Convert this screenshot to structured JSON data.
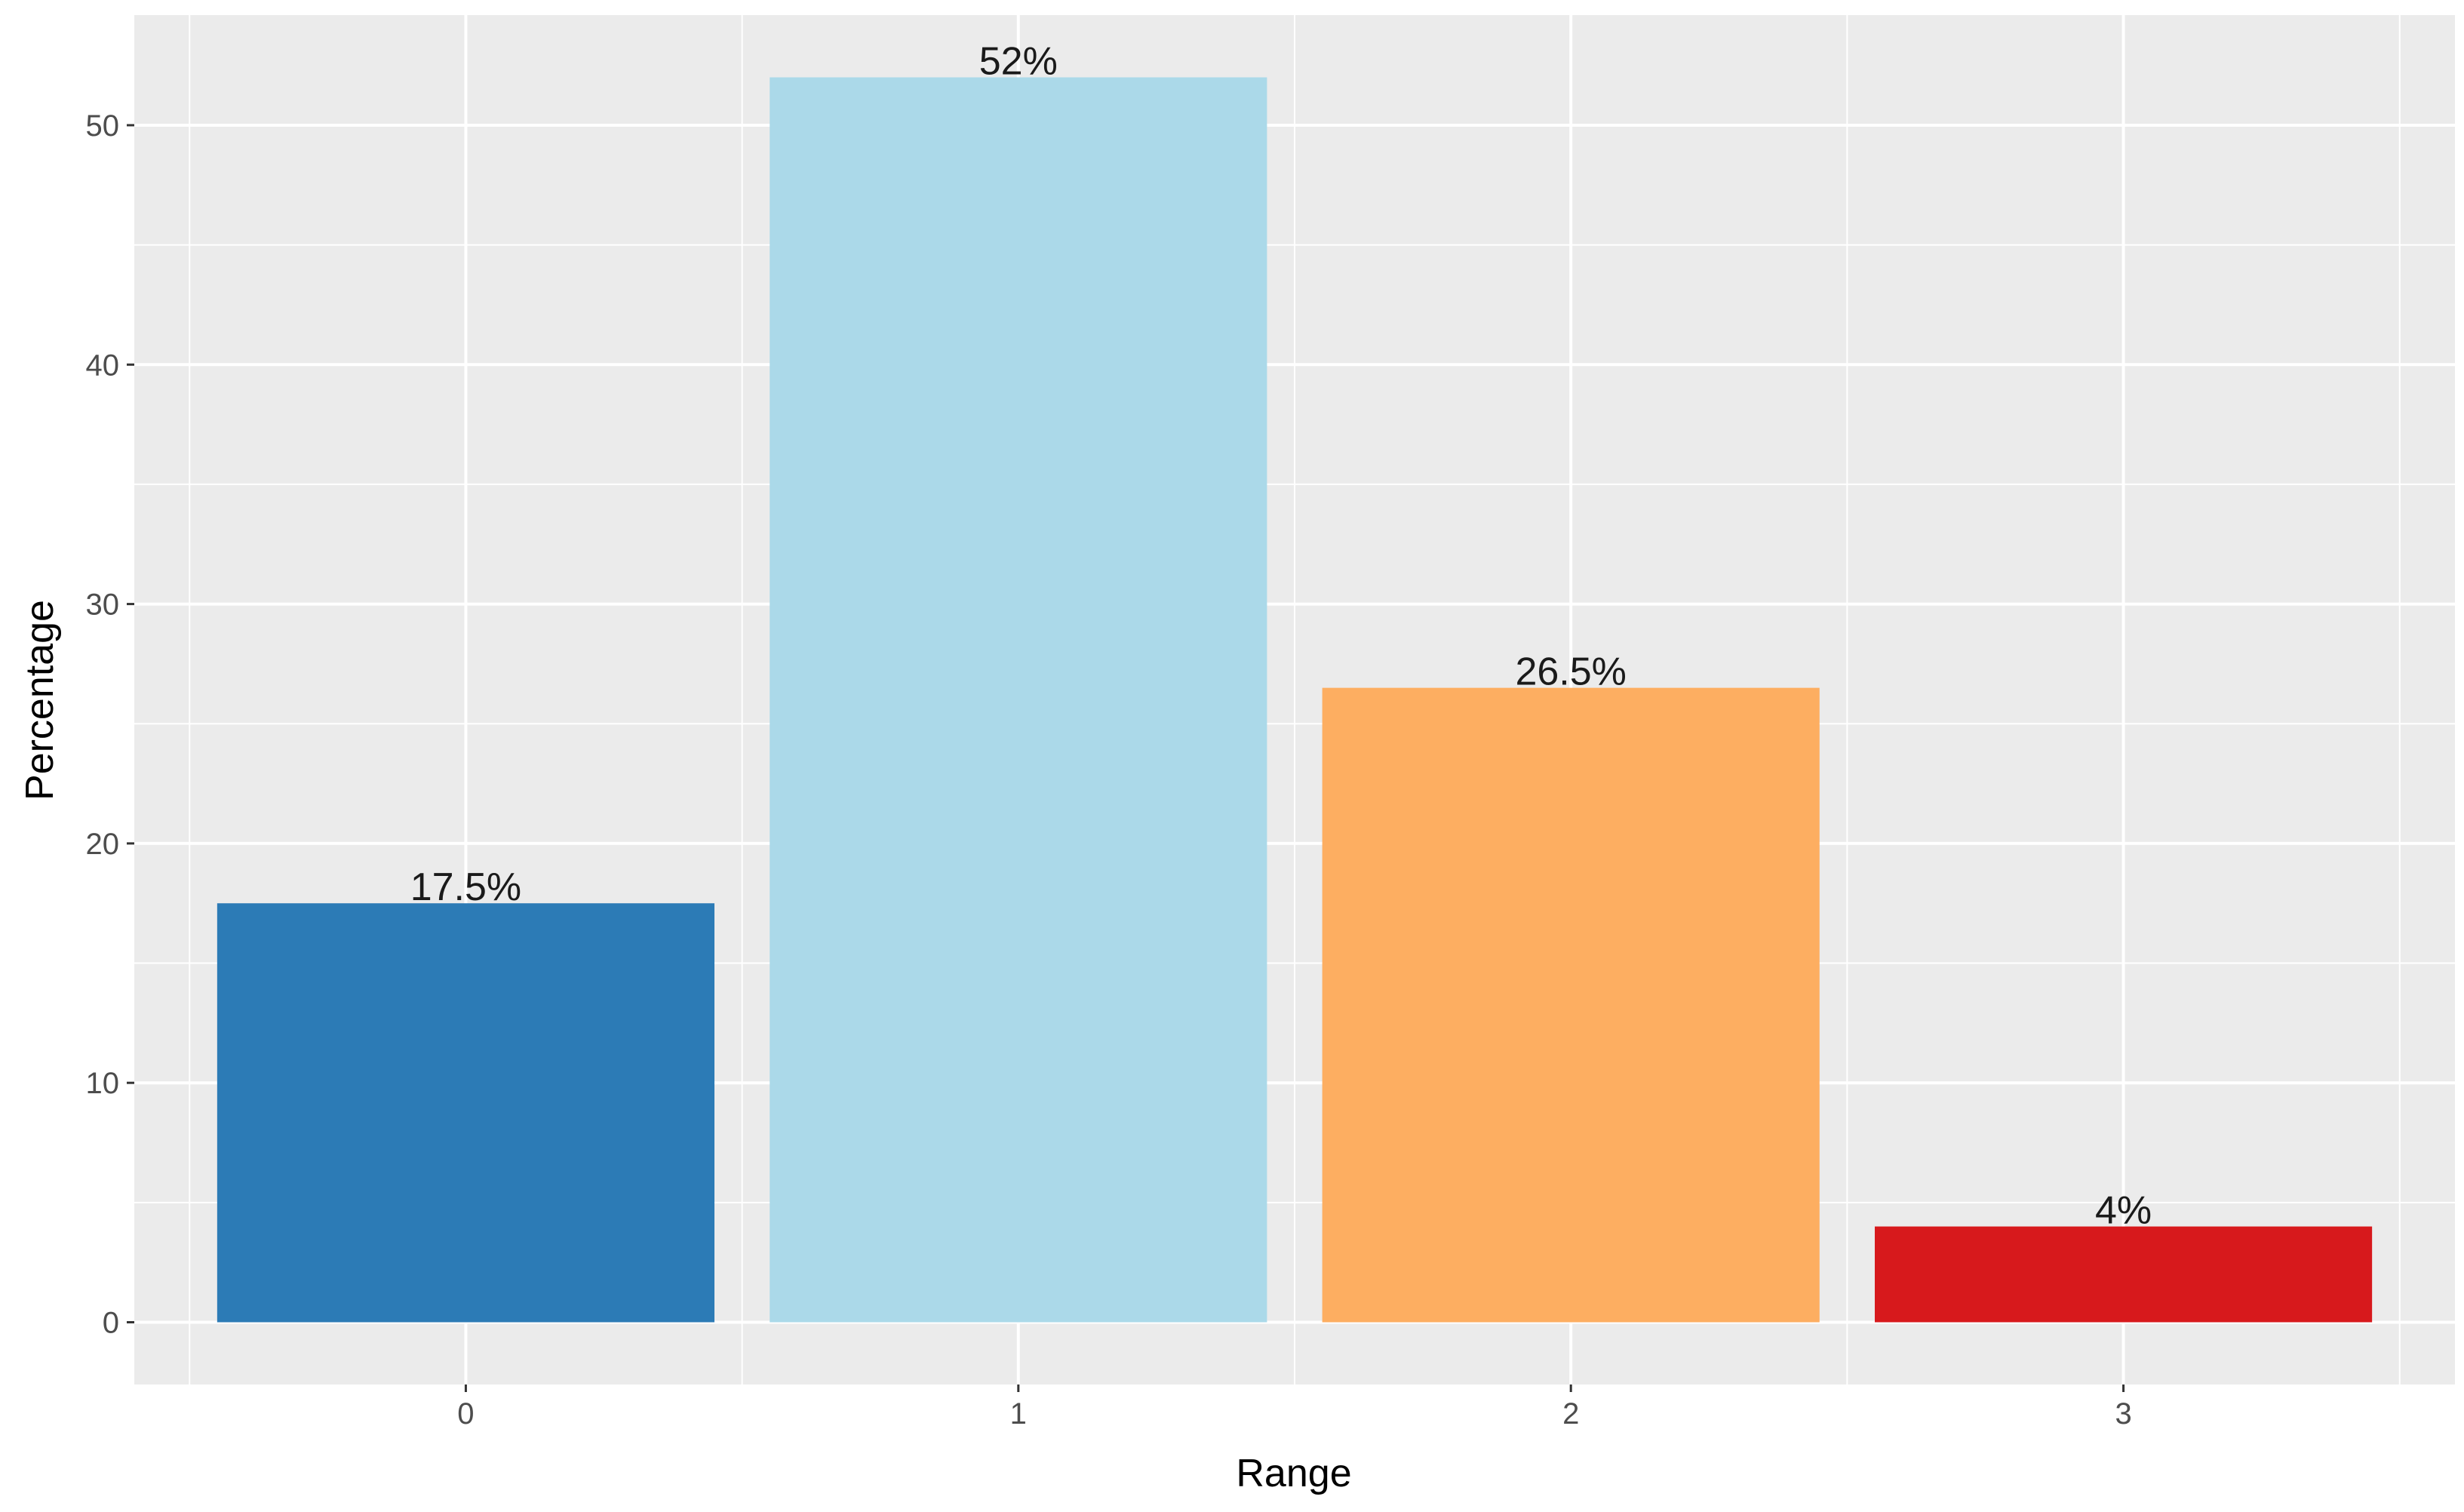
{
  "chart_data": {
    "type": "bar",
    "categories": [
      "0",
      "1",
      "2",
      "3"
    ],
    "values": [
      17.5,
      52,
      26.5,
      4
    ],
    "data_labels": [
      "17.5%",
      "52%",
      "26.5%",
      "4%"
    ],
    "colors": [
      "#2c7bb6",
      "#abd9e9",
      "#fdae61",
      "#d7191c"
    ],
    "xlabel": "Range",
    "ylabel": "Percentage",
    "ylim": [
      -2.6,
      54.6
    ],
    "yticks": [
      0,
      10,
      20,
      30,
      40,
      50
    ],
    "ytick_labels": [
      "0",
      "10",
      "20",
      "30",
      "40",
      "50"
    ],
    "grid": true,
    "panel_background": "#ebebeb",
    "grid_color": "#ffffff"
  }
}
